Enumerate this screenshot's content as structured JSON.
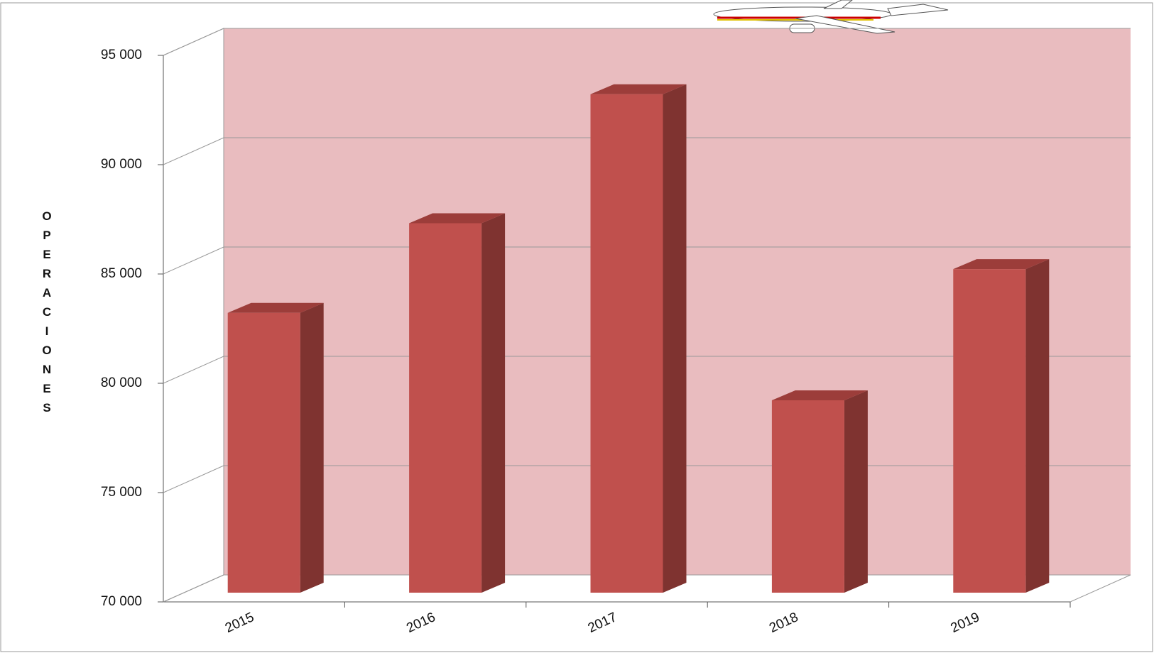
{
  "chart_data": {
    "type": "bar3d",
    "y_label": "OPERACIONES",
    "categories": [
      "2015",
      "2016",
      "2017",
      "2018",
      "2019"
    ],
    "values": [
      82800,
      86900,
      92800,
      78800,
      84800
    ],
    "color": "#c0504d",
    "side_color": "#7f3330",
    "top_color": "#9c3d3a",
    "ylim": [
      70000,
      95000
    ],
    "yticks": [
      {
        "value": 70000,
        "label": "70 000"
      },
      {
        "value": 75000,
        "label": "75 000"
      },
      {
        "value": 80000,
        "label": "80 000"
      },
      {
        "value": 85000,
        "label": "85 000"
      },
      {
        "value": 90000,
        "label": "90 000"
      },
      {
        "value": 95000,
        "label": "95 000"
      }
    ],
    "grid": true
  }
}
